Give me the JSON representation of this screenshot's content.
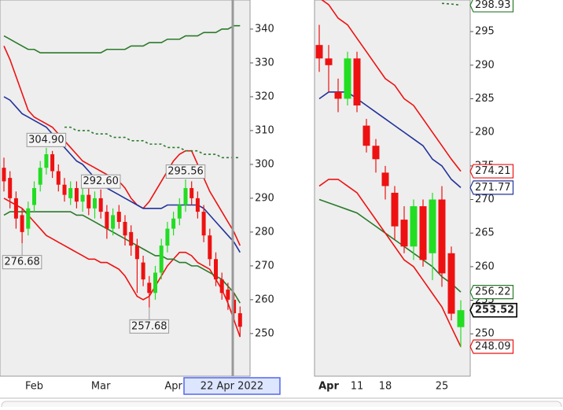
{
  "chart_data": [
    {
      "type": "candlestick",
      "crosshair_date": "22 Apr 2022",
      "categories": [
        null,
        null,
        null,
        null,
        null,
        "Feb",
        null,
        null,
        null,
        null,
        null,
        null,
        null,
        null,
        null,
        null,
        "Mar",
        null,
        null,
        null,
        null,
        null,
        null,
        null,
        null,
        null,
        null,
        null,
        "Apr",
        null,
        null,
        null,
        null,
        null,
        null,
        null,
        null,
        null,
        null,
        null
      ],
      "ylim": [
        237.4,
        348.6
      ],
      "yticks": [
        250,
        260,
        270,
        280,
        290,
        300,
        310,
        320,
        330,
        340
      ],
      "candles": {
        "up_color": "#22dd22",
        "down_color": "#ee1111",
        "open": [
          299,
          296,
          290,
          285,
          281,
          288,
          294,
          299,
          303,
          298,
          294,
          290,
          293,
          289,
          291,
          287,
          290,
          286,
          281,
          286,
          283,
          280,
          276,
          271,
          265,
          262,
          268,
          276,
          281,
          284,
          288,
          293,
          290,
          286,
          279,
          272,
          266,
          263,
          260,
          256
        ],
        "high": [
          302,
          298,
          292,
          287,
          289,
          295,
          301,
          304.9,
          304,
          300,
          296,
          295,
          295,
          293,
          293,
          292,
          292.6,
          288,
          287,
          288,
          285,
          282,
          278,
          273,
          267,
          270,
          278,
          283,
          286,
          290,
          295.56,
          295,
          292,
          288,
          281,
          274,
          268,
          265,
          262,
          258
        ],
        "low": [
          292,
          287,
          281,
          276.68,
          279,
          286,
          292,
          297,
          296,
          292,
          289,
          288,
          287,
          286,
          285,
          284,
          284,
          278,
          279,
          281,
          276,
          273,
          262,
          264,
          257.68,
          260,
          266,
          274,
          279,
          282,
          286,
          288,
          284,
          277,
          270,
          264,
          260,
          257,
          254,
          249
        ],
        "close": [
          295,
          290,
          284,
          280,
          287,
          293,
          299,
          303,
          298,
          294,
          291,
          293,
          289,
          291,
          287,
          290,
          286,
          281,
          285,
          283,
          279,
          276,
          272,
          266,
          262,
          268,
          276,
          281,
          284,
          288,
          293,
          290,
          286,
          279,
          272,
          266,
          262,
          260,
          256,
          252
        ],
        "high_labels": [
          null,
          null,
          null,
          null,
          null,
          null,
          null,
          "304.90",
          null,
          null,
          null,
          null,
          null,
          null,
          null,
          null,
          "292.60",
          null,
          null,
          null,
          null,
          null,
          null,
          null,
          null,
          null,
          null,
          null,
          null,
          null,
          "295.56",
          null,
          null,
          null,
          null,
          null,
          null,
          null,
          null,
          null
        ],
        "low_labels": [
          null,
          null,
          null,
          "276.68",
          null,
          null,
          null,
          null,
          null,
          null,
          null,
          null,
          null,
          null,
          null,
          null,
          null,
          null,
          null,
          null,
          null,
          null,
          null,
          null,
          "257.68",
          null,
          null,
          null,
          null,
          null,
          null,
          null,
          null,
          null,
          null,
          null,
          null,
          null,
          null,
          null
        ]
      },
      "lines": [
        {
          "color": "#ee1111",
          "dashed": false,
          "flag": false,
          "values": [
            335,
            331,
            326,
            321,
            316,
            314,
            313,
            312,
            311,
            309,
            307,
            305,
            303,
            301,
            300,
            299,
            298,
            297,
            296,
            295,
            293,
            290,
            288,
            287,
            289,
            292,
            295,
            298,
            301,
            303,
            304,
            304,
            300,
            296,
            292,
            289,
            286,
            283,
            280,
            276
          ]
        },
        {
          "color": "#ee1111",
          "dashed": false,
          "flag": false,
          "values": [
            290,
            289,
            288,
            287,
            285,
            283,
            281,
            279,
            278,
            277,
            276,
            275,
            274,
            273,
            272,
            272,
            271,
            271,
            270,
            269,
            267,
            264,
            261,
            260,
            261,
            264,
            267,
            270,
            272,
            274,
            274,
            273,
            271,
            270,
            269,
            266,
            263,
            259,
            254,
            249
          ]
        },
        {
          "color": "#223399",
          "dashed": false,
          "flag": false,
          "values": [
            320,
            319,
            317,
            315,
            314,
            313,
            312,
            311,
            309,
            307,
            305,
            303,
            301,
            300,
            298,
            296,
            294,
            293,
            292,
            291,
            290,
            289,
            288,
            287,
            287,
            287,
            287,
            288,
            288,
            288,
            288,
            288,
            288,
            287,
            285,
            283,
            281,
            279,
            277,
            274
          ]
        },
        {
          "color": "#2a7a2a",
          "dashed": false,
          "flag": false,
          "values": [
            285,
            286,
            286,
            286,
            286,
            286,
            286,
            286,
            286,
            286,
            286,
            286,
            285,
            285,
            284,
            283,
            282,
            281,
            280,
            279,
            278,
            277,
            276,
            275,
            274,
            273,
            273,
            272,
            272,
            271,
            271,
            270,
            270,
            269,
            268,
            267,
            266,
            264,
            262,
            259
          ]
        },
        {
          "color": "#2a7a2a",
          "dashed": false,
          "flag": false,
          "values": [
            338,
            337,
            336,
            335,
            334,
            334,
            333,
            333,
            333,
            333,
            333,
            333,
            333,
            333,
            333,
            333,
            333,
            334,
            334,
            334,
            334,
            335,
            335,
            335,
            336,
            336,
            336,
            337,
            337,
            337,
            338,
            338,
            338,
            339,
            339,
            339,
            340,
            340,
            341,
            341
          ]
        },
        {
          "color": "#2a7a2a",
          "dashed": true,
          "flag": false,
          "values": [
            null,
            null,
            null,
            null,
            null,
            null,
            null,
            null,
            null,
            null,
            311,
            311,
            310,
            310,
            310,
            309,
            309,
            309,
            308,
            308,
            308,
            307,
            307,
            307,
            306,
            306,
            306,
            305,
            305,
            305,
            304,
            304,
            304,
            303,
            303,
            303,
            302,
            302,
            302,
            302
          ]
        }
      ]
    },
    {
      "type": "candlestick",
      "categories": [
        null,
        "Apr",
        null,
        null,
        "11",
        null,
        null,
        "18",
        null,
        null,
        null,
        null,
        null,
        "25",
        null,
        null
      ],
      "ylim": [
        243.7,
        299.7
      ],
      "yticks": [
        250,
        255,
        260,
        265,
        270,
        275,
        280,
        285,
        290,
        295
      ],
      "candles": {
        "up_color": "#22dd22",
        "down_color": "#ee1111",
        "flag": true,
        "open": [
          293,
          291,
          286,
          285,
          291,
          281,
          278,
          274,
          271,
          267,
          263,
          269,
          262,
          270,
          262,
          251
        ],
        "high": [
          296,
          293,
          288,
          292,
          292,
          282,
          279,
          275,
          272,
          269,
          270,
          270,
          271,
          272,
          263,
          255
        ],
        "low": [
          289,
          286,
          283,
          284,
          283,
          277,
          274,
          270,
          264,
          262,
          261,
          260,
          258,
          257,
          252,
          248
        ],
        "close": [
          291,
          290,
          285,
          291,
          284,
          278,
          276,
          272,
          266,
          263,
          269,
          261,
          270,
          259,
          253,
          253.52
        ]
      },
      "lines": [
        {
          "color": "#ee1111",
          "dashed": false,
          "flag": true,
          "values": [
            300,
            299,
            297,
            296,
            294,
            292,
            290,
            288,
            287,
            285,
            284,
            282,
            280,
            278,
            276,
            274.21
          ]
        },
        {
          "color": "#223399",
          "dashed": false,
          "flag": true,
          "values": [
            285,
            286,
            286,
            286,
            285,
            284,
            283,
            282,
            281,
            280,
            279,
            278,
            276,
            275,
            273,
            271.77
          ]
        },
        {
          "color": "#2a7a2a",
          "dashed": false,
          "flag": true,
          "values": [
            270,
            269.5,
            269,
            268.5,
            268,
            267,
            266,
            265,
            264,
            263,
            262,
            261,
            260,
            258.5,
            257.5,
            256.22
          ]
        },
        {
          "color": "#ee1111",
          "dashed": false,
          "flag": true,
          "values": [
            272,
            273,
            273,
            272,
            271,
            269,
            267,
            265,
            263,
            261,
            260,
            258,
            256,
            254,
            251,
            248.09
          ]
        },
        {
          "color": "#2a7a2a",
          "dashed": true,
          "flag": true,
          "values": [
            null,
            null,
            null,
            null,
            null,
            null,
            null,
            null,
            null,
            null,
            null,
            null,
            null,
            299.2,
            299.1,
            298.93
          ]
        }
      ]
    }
  ]
}
